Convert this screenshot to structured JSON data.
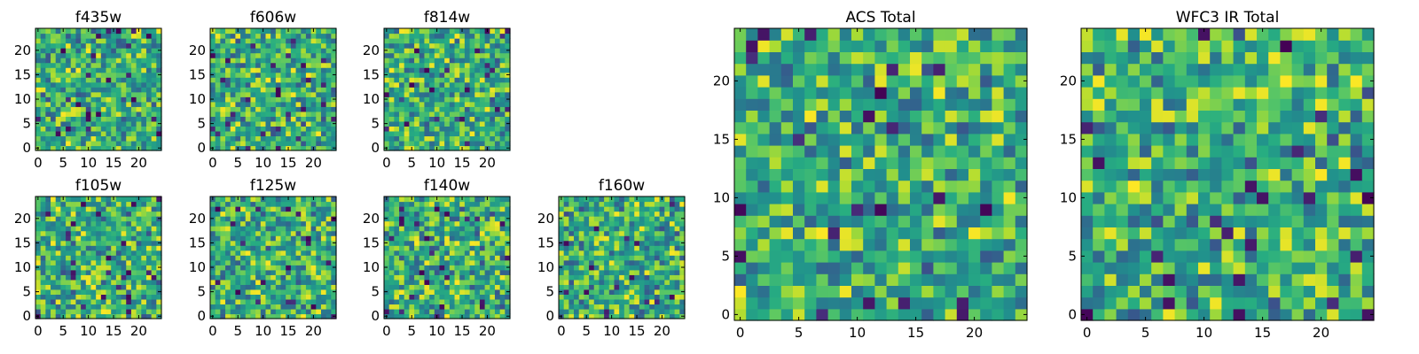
{
  "chart_data": [
    {
      "type": "heatmap",
      "title": "f435w",
      "xticks": [
        "0",
        "5",
        "10",
        "15",
        "20"
      ],
      "yticks": [
        "0",
        "5",
        "10",
        "15",
        "20"
      ],
      "xlim": [
        -0.5,
        24.5
      ],
      "ylim": [
        -0.5,
        24.5
      ],
      "grid": false,
      "colormap": "viridis",
      "pixels": "random pixel noise, 25x25, values unlabeled"
    },
    {
      "type": "heatmap",
      "title": "f606w",
      "xticks": [
        "0",
        "5",
        "10",
        "15",
        "20"
      ],
      "yticks": [
        "0",
        "5",
        "10",
        "15",
        "20"
      ],
      "xlim": [
        -0.5,
        24.5
      ],
      "ylim": [
        -0.5,
        24.5
      ],
      "grid": false,
      "colormap": "viridis",
      "pixels": "random pixel noise, 25x25, values unlabeled"
    },
    {
      "type": "heatmap",
      "title": "f814w",
      "xticks": [
        "0",
        "5",
        "10",
        "15",
        "20"
      ],
      "yticks": [
        "0",
        "5",
        "10",
        "15",
        "20"
      ],
      "xlim": [
        -0.5,
        24.5
      ],
      "ylim": [
        -0.5,
        24.5
      ],
      "grid": false,
      "colormap": "viridis",
      "pixels": "random pixel noise, 25x25, values unlabeled"
    },
    {
      "type": "heatmap",
      "title": "f105w",
      "xticks": [
        "0",
        "5",
        "10",
        "15",
        "20"
      ],
      "yticks": [
        "0",
        "5",
        "10",
        "15",
        "20"
      ],
      "xlim": [
        -0.5,
        24.5
      ],
      "ylim": [
        -0.5,
        24.5
      ],
      "grid": false,
      "colormap": "viridis",
      "pixels": "random pixel noise, 25x25, values unlabeled"
    },
    {
      "type": "heatmap",
      "title": "f125w",
      "xticks": [
        "0",
        "5",
        "10",
        "15",
        "20"
      ],
      "yticks": [
        "0",
        "5",
        "10",
        "15",
        "20"
      ],
      "xlim": [
        -0.5,
        24.5
      ],
      "ylim": [
        -0.5,
        24.5
      ],
      "grid": false,
      "colormap": "viridis",
      "pixels": "random pixel noise, 25x25, values unlabeled"
    },
    {
      "type": "heatmap",
      "title": "f140w",
      "xticks": [
        "0",
        "5",
        "10",
        "15",
        "20"
      ],
      "yticks": [
        "0",
        "5",
        "10",
        "15",
        "20"
      ],
      "xlim": [
        -0.5,
        24.5
      ],
      "ylim": [
        -0.5,
        24.5
      ],
      "grid": false,
      "colormap": "viridis",
      "pixels": "random pixel noise, 25x25, values unlabeled"
    },
    {
      "type": "heatmap",
      "title": "f160w",
      "xticks": [
        "0",
        "5",
        "10",
        "15",
        "20"
      ],
      "yticks": [
        "0",
        "5",
        "10",
        "15",
        "20"
      ],
      "xlim": [
        -0.5,
        24.5
      ],
      "ylim": [
        -0.5,
        24.5
      ],
      "grid": false,
      "colormap": "viridis",
      "pixels": "random pixel noise, 25x25, values unlabeled"
    },
    {
      "type": "heatmap",
      "title": "ACS Total",
      "xticks": [
        "0",
        "5",
        "10",
        "15",
        "20"
      ],
      "yticks": [
        "0",
        "5",
        "10",
        "15",
        "20"
      ],
      "xlim": [
        -0.5,
        24.5
      ],
      "ylim": [
        -0.5,
        24.5
      ],
      "grid": false,
      "colormap": "viridis",
      "pixels": "random pixel noise, 25x25, values unlabeled"
    },
    {
      "type": "heatmap",
      "title": "WFC3 IR Total",
      "xticks": [
        "0",
        "5",
        "10",
        "15",
        "20"
      ],
      "yticks": [
        "0",
        "5",
        "10",
        "15",
        "20"
      ],
      "xlim": [
        -0.5,
        24.5
      ],
      "ylim": [
        -0.5,
        24.5
      ],
      "grid": false,
      "colormap": "viridis",
      "pixels": "random pixel noise, 25x25, values unlabeled"
    }
  ]
}
